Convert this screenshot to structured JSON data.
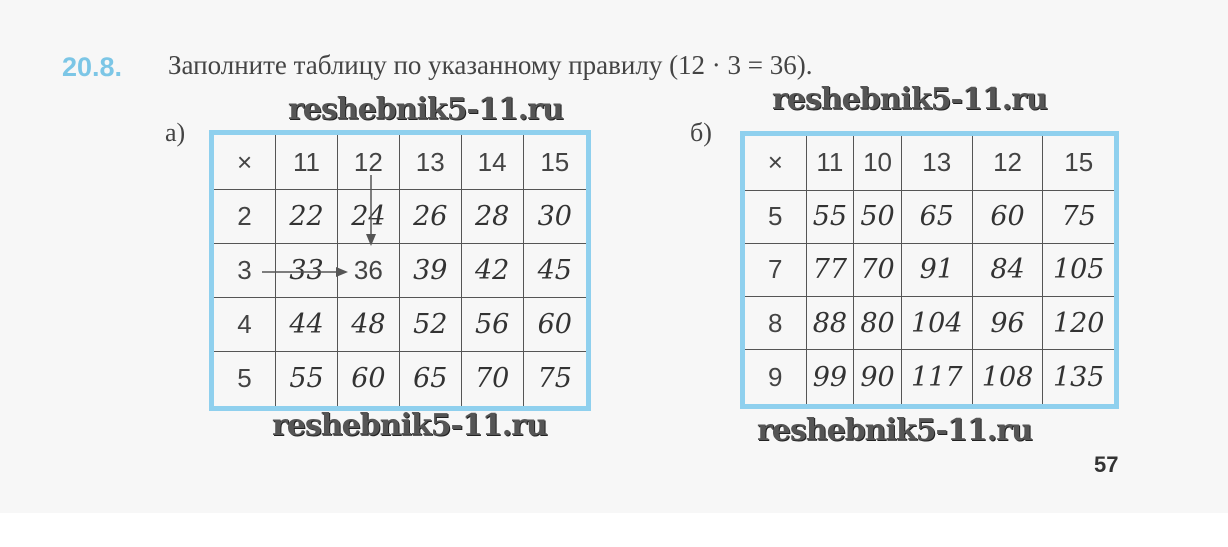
{
  "task": {
    "number": "20.8.",
    "text": "Заполните таблицу по указанному правилу (12 · 3 = 36)."
  },
  "watermark": "reshebnik5-11.ru",
  "table_a": {
    "label": "а)",
    "corner": "×",
    "columns": [
      "11",
      "12",
      "13",
      "14",
      "15"
    ],
    "rows": [
      {
        "h": "2",
        "cells": [
          "22",
          "24",
          "26",
          "28",
          "30"
        ]
      },
      {
        "h": "3",
        "cells": [
          "33",
          "36",
          "39",
          "42",
          "45"
        ]
      },
      {
        "h": "4",
        "cells": [
          "44",
          "48",
          "52",
          "56",
          "60"
        ]
      },
      {
        "h": "5",
        "cells": [
          "55",
          "60",
          "65",
          "70",
          "75"
        ]
      }
    ]
  },
  "table_b": {
    "label": "б)",
    "corner": "×",
    "columns": [
      "11",
      "10",
      "13",
      "12",
      "15"
    ],
    "rows": [
      {
        "h": "5",
        "cells": [
          "55",
          "50",
          "65",
          "60",
          "75"
        ]
      },
      {
        "h": "7",
        "cells": [
          "77",
          "70",
          "91",
          "84",
          "105"
        ]
      },
      {
        "h": "8",
        "cells": [
          "88",
          "80",
          "104",
          "96",
          "120"
        ]
      },
      {
        "h": "9",
        "cells": [
          "99",
          "90",
          "117",
          "108",
          "135"
        ]
      }
    ]
  },
  "page_number": "57",
  "colors": {
    "accent": "#7cc6e6",
    "table_border": "#8fd0ee"
  }
}
